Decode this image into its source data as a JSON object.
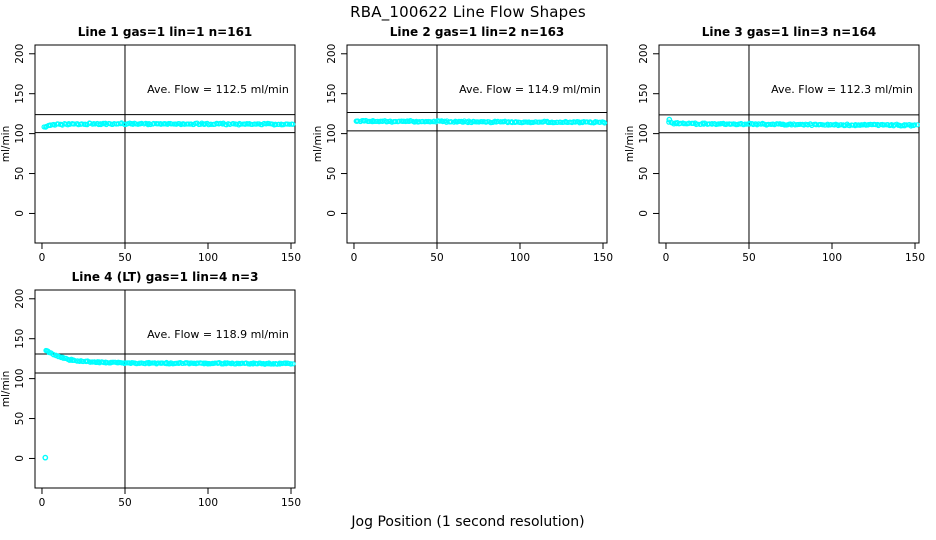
{
  "chart_data": {
    "type": "scatter",
    "title": "RBA_100622  Line Flow Shapes",
    "xlabel": "Jog Position (1 second resolution)",
    "ylabel": "ml/min",
    "x_ticks": [
      0,
      50,
      100,
      150
    ],
    "y_ticks": [
      0,
      50,
      100,
      150,
      200
    ],
    "xlim": [
      -4.2,
      152.4
    ],
    "ylim": [
      -37,
      211
    ],
    "vline_x": 50,
    "point_color": "#00ffff",
    "axis_color": "#000000",
    "annotation_pos": {
      "x": 106,
      "y": 151
    },
    "legend": "none",
    "grid": false,
    "panels": [
      {
        "title": "Line 1 gas=1 lin=1 n=161",
        "n": 161,
        "ave_flow": 112.5,
        "annotation": "Ave. Flow =  112.5  ml/min",
        "hlines": [
          123.8,
          101.3
        ],
        "band": {
          "x_start": 1,
          "x_end": 151,
          "anchors": [
            [
              1,
              107.5
            ],
            [
              2,
              108.5
            ],
            [
              4,
              110.5
            ],
            [
              8,
              111.5
            ],
            [
              15,
              112.0
            ],
            [
              50,
              112.4
            ],
            [
              100,
              112.2
            ],
            [
              151,
              111.8
            ]
          ],
          "jitter": 1.2,
          "points": 170
        },
        "outliers": []
      },
      {
        "title": "Line 2 gas=1 lin=2 n=163",
        "n": 163,
        "ave_flow": 114.9,
        "annotation": "Ave. Flow =  114.9  ml/min",
        "hlines": [
          126.4,
          103.4
        ],
        "band": {
          "x_start": 1,
          "x_end": 151,
          "anchors": [
            [
              1,
              116.5
            ],
            [
              5,
              115.8
            ],
            [
              20,
              115.3
            ],
            [
              60,
              115.0
            ],
            [
              100,
              114.6
            ],
            [
              151,
              114.2
            ]
          ],
          "jitter": 1.2,
          "points": 172
        },
        "outliers": []
      },
      {
        "title": "Line 3 gas=1 lin=3 n=164",
        "n": 164,
        "ave_flow": 112.3,
        "annotation": "Ave. Flow =  112.3  ml/min",
        "hlines": [
          123.5,
          101.1
        ],
        "band": {
          "x_start": 2,
          "x_end": 151,
          "anchors": [
            [
              2,
              113.5
            ],
            [
              6,
              112.8
            ],
            [
              20,
              112.3
            ],
            [
              60,
              111.8
            ],
            [
              110,
              111.0
            ],
            [
              151,
              110.5
            ]
          ],
          "jitter": 1.3,
          "points": 172
        },
        "outliers": [
          [
            2,
            117.5
          ]
        ]
      },
      {
        "title": "Line 4 (LT) gas=1 lin=4 n=3",
        "n": 3,
        "ave_flow": 118.9,
        "annotation": "Ave. Flow =  118.9  ml/min",
        "hlines": [
          130.8,
          107.0
        ],
        "band": {
          "x_start": 2,
          "x_end": 151,
          "anchors": [
            [
              2,
              135.5
            ],
            [
              4,
              133.5
            ],
            [
              7,
              130.0
            ],
            [
              10,
              127.5
            ],
            [
              14,
              125.0
            ],
            [
              20,
              122.5
            ],
            [
              28,
              121.0
            ],
            [
              40,
              120.0
            ],
            [
              60,
              119.4
            ],
            [
              100,
              119.2
            ],
            [
              151,
              118.8
            ]
          ],
          "jitter": 1.0,
          "points": 200
        },
        "outliers": [
          [
            2,
            1
          ]
        ]
      }
    ]
  }
}
